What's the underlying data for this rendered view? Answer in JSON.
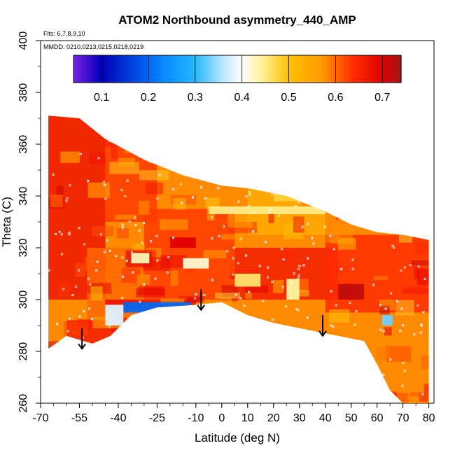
{
  "chart_data": {
    "type": "heatmap",
    "title": "ATOM2 Northbound asymmetry_440_AMP",
    "flights_note": "Flts: 6,7,8,9,10",
    "dates_note": "MMDD: 0210,0213,0215,0218,0219",
    "xlabel": "Latitude (deg N)",
    "ylabel": "Theta (C)",
    "xlim": [
      -70,
      82
    ],
    "ylim": [
      260,
      400
    ],
    "x_ticks": [
      -70,
      -55,
      -40,
      -25,
      -10,
      0,
      10,
      20,
      30,
      40,
      50,
      60,
      70,
      80
    ],
    "y_ticks": [
      260,
      280,
      300,
      320,
      340,
      360,
      380,
      400
    ],
    "colorbar": {
      "range": [
        0.04,
        0.74
      ],
      "ticks": [
        0.1,
        0.2,
        0.3,
        0.4,
        0.5,
        0.6,
        0.7
      ],
      "stops": [
        {
          "v": 0.04,
          "c": "#7a1fe6"
        },
        {
          "v": 0.1,
          "c": "#0000b8"
        },
        {
          "v": 0.17,
          "c": "#0047e0"
        },
        {
          "v": 0.23,
          "c": "#0a86ff"
        },
        {
          "v": 0.3,
          "c": "#22b8ff"
        },
        {
          "v": 0.36,
          "c": "#bfe6ff"
        },
        {
          "v": 0.4,
          "c": "#ffffff"
        },
        {
          "v": 0.44,
          "c": "#fff2a0"
        },
        {
          "v": 0.5,
          "c": "#ffc000"
        },
        {
          "v": 0.57,
          "c": "#ff9a00"
        },
        {
          "v": 0.64,
          "c": "#ff2a00"
        },
        {
          "v": 0.7,
          "c": "#e00000"
        },
        {
          "v": 0.74,
          "c": "#a01818"
        }
      ]
    },
    "domain": {
      "upper_edge": [
        [
          -67,
          371
        ],
        [
          -55,
          370
        ],
        [
          -45,
          362
        ],
        [
          -30,
          354
        ],
        [
          -15,
          348
        ],
        [
          0,
          344
        ],
        [
          10,
          343
        ],
        [
          25,
          340
        ],
        [
          40,
          334
        ],
        [
          50,
          329
        ],
        [
          60,
          326
        ],
        [
          70,
          325
        ],
        [
          80,
          323
        ]
      ],
      "lower_edge": [
        [
          -67,
          281
        ],
        [
          -60,
          286
        ],
        [
          -50,
          283
        ],
        [
          -43,
          286
        ],
        [
          -35,
          294
        ],
        [
          -25,
          297
        ],
        [
          -10,
          298
        ],
        [
          0,
          299
        ],
        [
          10,
          294
        ],
        [
          20,
          291
        ],
        [
          30,
          289
        ],
        [
          40,
          287
        ],
        [
          50,
          285
        ],
        [
          55,
          284
        ],
        [
          60,
          275
        ],
        [
          65,
          265
        ],
        [
          70,
          260
        ],
        [
          80,
          260
        ]
      ]
    },
    "background_value": 0.58,
    "regions": [
      {
        "x": [
          -67,
          -45
        ],
        "y": [
          300,
          371
        ],
        "v": 0.67
      },
      {
        "x": [
          -45,
          -25
        ],
        "y": [
          330,
          362
        ],
        "v": 0.63
      },
      {
        "x": [
          -52,
          -30
        ],
        "y": [
          290,
          320
        ],
        "v": 0.6
      },
      {
        "x": [
          -30,
          5
        ],
        "y": [
          300,
          335
        ],
        "v": 0.63
      },
      {
        "x": [
          5,
          45
        ],
        "y": [
          300,
          320
        ],
        "v": 0.66
      },
      {
        "x": [
          40,
          80
        ],
        "y": [
          295,
          325
        ],
        "v": 0.64
      },
      {
        "x": [
          10,
          40
        ],
        "y": [
          325,
          345
        ],
        "v": 0.54
      },
      {
        "x": [
          -45,
          -10
        ],
        "y": [
          296,
          300
        ],
        "v": 0.68
      },
      {
        "x": [
          -60,
          -40
        ],
        "y": [
          283,
          292
        ],
        "v": 0.66
      }
    ],
    "features": [
      {
        "x": [
          -38,
          -12
        ],
        "y": [
          295,
          299
        ],
        "v": 0.2
      },
      {
        "x": [
          -45,
          -38
        ],
        "y": [
          290,
          298
        ],
        "v": 0.38
      },
      {
        "x": [
          -35,
          -28
        ],
        "y": [
          314,
          318
        ],
        "v": 0.43
      },
      {
        "x": [
          -15,
          -5
        ],
        "y": [
          312,
          316
        ],
        "v": 0.42
      },
      {
        "x": [
          5,
          15
        ],
        "y": [
          305,
          310
        ],
        "v": 0.46
      },
      {
        "x": [
          -5,
          40
        ],
        "y": [
          333,
          336
        ],
        "v": 0.45
      },
      {
        "x": [
          25,
          30
        ],
        "y": [
          300,
          308
        ],
        "v": 0.44
      },
      {
        "x": [
          62,
          66
        ],
        "y": [
          290,
          294
        ],
        "v": 0.33
      },
      {
        "x": [
          45,
          55
        ],
        "y": [
          300,
          306
        ],
        "v": 0.72
      },
      {
        "x": [
          -20,
          -10
        ],
        "y": [
          320,
          324
        ],
        "v": 0.7
      },
      {
        "x": [
          20,
          30
        ],
        "y": [
          338,
          342
        ],
        "v": 0.48
      }
    ],
    "arrows": [
      {
        "x": -54,
        "y_from": 289,
        "y_to": 281
      },
      {
        "x": -8,
        "y_from": 304,
        "y_to": 296
      },
      {
        "x": 39,
        "y_from": 294,
        "y_to": 286
      }
    ]
  }
}
